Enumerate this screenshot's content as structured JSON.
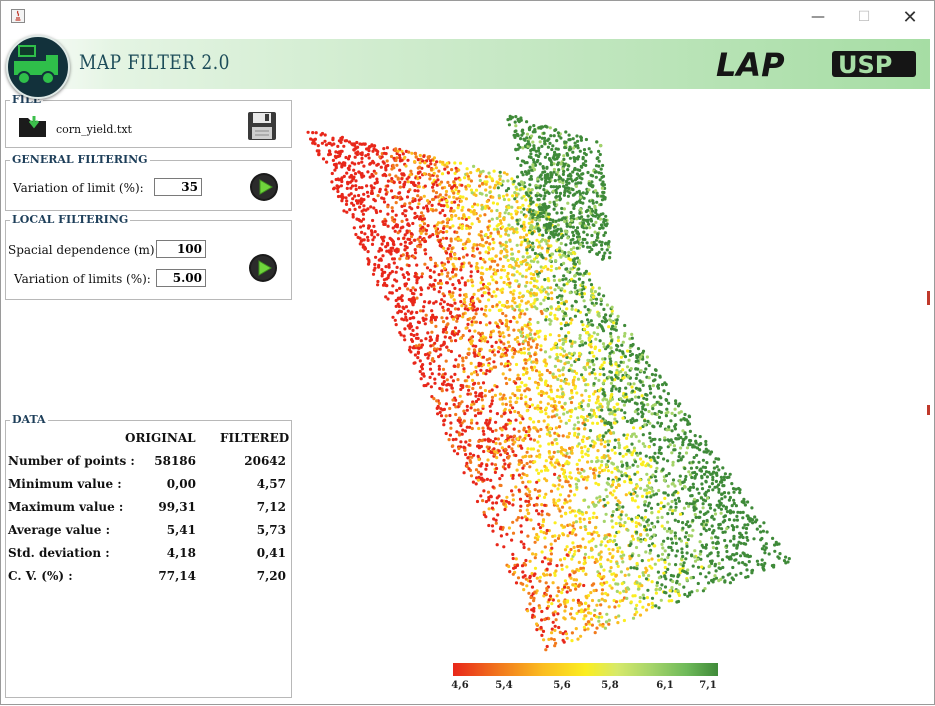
{
  "app": {
    "title": "MAP FILTER 2.0",
    "brand_text": "LAP USP"
  },
  "window_controls": {
    "minimize": "—",
    "maximize": "☐",
    "close": "✕"
  },
  "file_panel": {
    "title": "FILE",
    "filename": "corn_yield.txt",
    "icons": [
      "open-folder-icon",
      "save-disk-icon"
    ]
  },
  "general_filtering": {
    "title": "GENERAL FILTERING",
    "variation_label": "Variation of limit (%):",
    "variation_value": "35"
  },
  "local_filtering": {
    "title": "LOCAL FILTERING",
    "spacial_label": "Spacial dependence (m):",
    "spacial_value": "100",
    "variation_label": "Variation of limits (%):",
    "variation_value": "5.00"
  },
  "data_panel": {
    "title": "DATA",
    "col_original": "ORIGINAL",
    "col_filtered": "FILTERED",
    "rows": [
      {
        "label": "Number of points :",
        "original": "58186",
        "filtered": "20642"
      },
      {
        "label": "Minimum value   :",
        "original": "0,00",
        "filtered": "4,57"
      },
      {
        "label": "Maximum value   :",
        "original": "99,31",
        "filtered": "7,12"
      },
      {
        "label": "Average value     :",
        "original": "5,41",
        "filtered": "5,73"
      },
      {
        "label": "Std. deviation     :",
        "original": "4,18",
        "filtered": "0,41"
      },
      {
        "label": "C. V. (%)          :",
        "original": "77,14",
        "filtered": "7,20"
      }
    ]
  },
  "legend": {
    "ticks": [
      "4,6",
      "5,4",
      "5,6",
      "5,8",
      "6,1",
      "7,1"
    ],
    "colors": [
      "#e8271a",
      "#f27a1d",
      "#fbbd20",
      "#fbee20",
      "#a5d46a",
      "#3f8a39"
    ]
  },
  "colors": {
    "accent": "#1e3f5a",
    "banner_green": "#a6dda4",
    "low_yield": "#d7261c",
    "high_yield": "#2f8b3a"
  }
}
